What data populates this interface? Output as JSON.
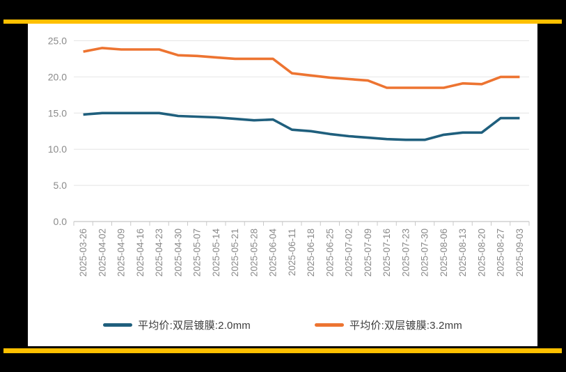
{
  "frame": {
    "background_color": "#000000",
    "accent_bar_color": "#FFC000",
    "panel_color": "#FFFFFF"
  },
  "chart_data": {
    "type": "line",
    "title": "",
    "categories": [
      "2025-03-26",
      "2025-04-02",
      "2025-04-09",
      "2025-04-16",
      "2025-04-23",
      "2025-04-30",
      "2025-05-07",
      "2025-05-14",
      "2025-05-21",
      "2025-05-28",
      "2025-06-04",
      "2025-06-11",
      "2025-06-18",
      "2025-06-25",
      "2025-07-02",
      "2025-07-09",
      "2025-07-16",
      "2025-07-23",
      "2025-07-30",
      "2025-08-06",
      "2025-08-13",
      "2025-08-20",
      "2025-08-27",
      "2025-09-03"
    ],
    "series": [
      {
        "name": "平均价:双层镀膜:2.0mm",
        "color": "#1F5F7D",
        "values": [
          14.8,
          15.0,
          15.0,
          15.0,
          15.0,
          14.6,
          14.5,
          14.4,
          14.2,
          14.0,
          14.1,
          12.7,
          12.5,
          12.1,
          11.8,
          11.6,
          11.4,
          11.3,
          11.3,
          12.0,
          12.3,
          12.3,
          14.3,
          14.3
        ]
      },
      {
        "name": "平均价:双层镀膜:3.2mm",
        "color": "#ED7431",
        "values": [
          23.5,
          24.0,
          23.8,
          23.8,
          23.8,
          23.0,
          22.9,
          22.7,
          22.5,
          22.5,
          22.5,
          20.5,
          20.2,
          19.9,
          19.7,
          19.5,
          18.5,
          18.5,
          18.5,
          18.5,
          19.1,
          19.0,
          20.0,
          20.0
        ]
      }
    ],
    "ylim": [
      0,
      25
    ],
    "ytick_step": 5,
    "ytick_labels": [
      "0.0",
      "5.0",
      "10.0",
      "15.0",
      "20.0",
      "25.0"
    ],
    "xlabel": "",
    "ylabel": "",
    "grid": "horizontal",
    "legend_position": "bottom",
    "x_label_rotation": -90
  },
  "style": {
    "gridline_color": "#E4E4E4",
    "axis_color": "#C8C8C8",
    "tick_label_color": "#8A8A8A",
    "legend_text_color": "#3D3D3D"
  }
}
